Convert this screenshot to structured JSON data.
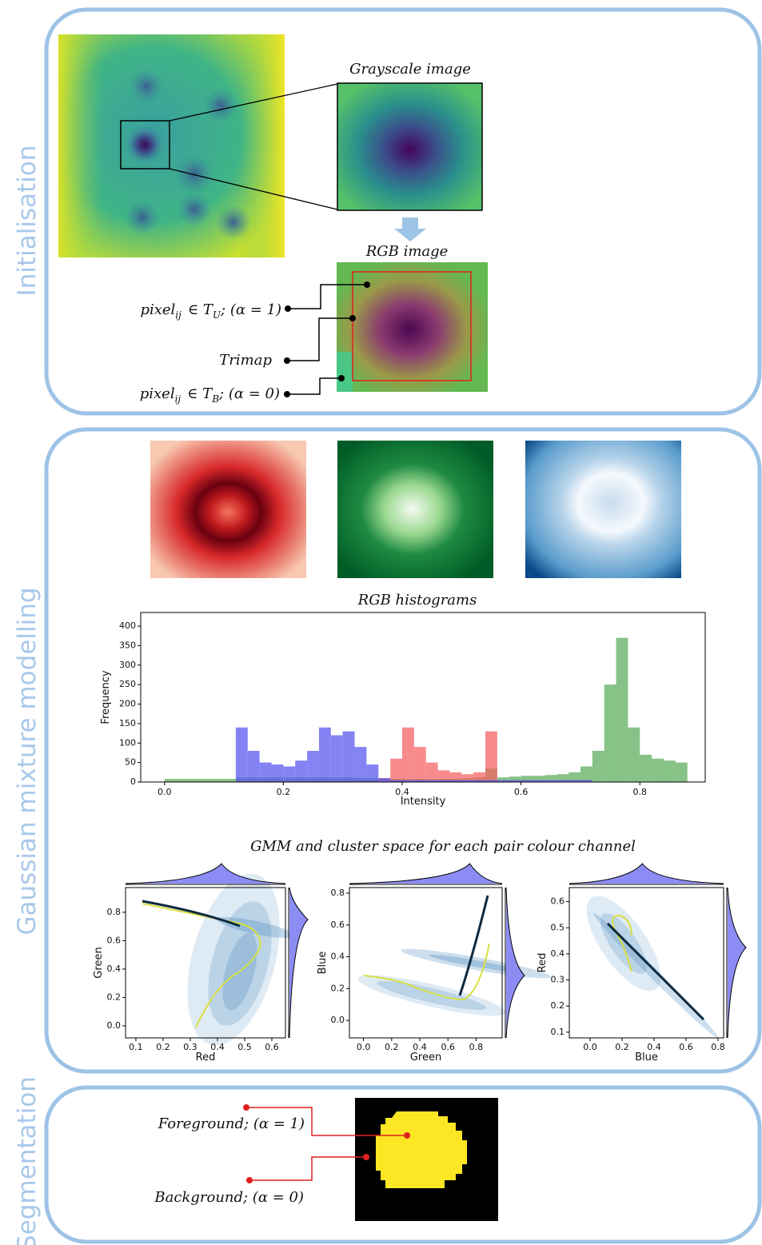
{
  "sections": [
    "Initialisation",
    "Gaussian mixture modelling",
    "Segmentation"
  ],
  "initialisation": {
    "zoom_title": "Grayscale image",
    "rgb_title": "RGB image",
    "pixel_unknown": [
      "pixel",
      "ij",
      "∈ T",
      "U",
      "; (α = 1)"
    ],
    "trimap": "Trimap",
    "pixel_background": [
      "pixel",
      "ij",
      "∈ T",
      "B",
      "; (α = 0)"
    ]
  },
  "channels_title": "RGB histograms",
  "chart_data": {
    "type": "histogram",
    "x_label": "Intensity",
    "y_label": "Frequency",
    "bins": [
      0,
      0.02,
      0.04,
      0.06,
      0.08,
      0.1,
      0.12,
      0.14,
      0.16,
      0.18,
      0.2,
      0.22,
      0.24,
      0.26,
      0.28,
      0.3,
      0.32,
      0.34,
      0.36,
      0.38,
      0.4,
      0.42,
      0.44,
      0.46,
      0.48,
      0.5,
      0.52,
      0.54,
      0.56,
      0.58,
      0.6,
      0.62,
      0.64,
      0.66,
      0.68,
      0.7,
      0.72,
      0.74,
      0.76,
      0.78,
      0.8,
      0.82,
      0.84,
      0.86,
      0.88
    ],
    "series": [
      {
        "name": "Green",
        "color": "#5fad5f",
        "values": [
          8,
          8,
          8,
          8,
          8,
          8,
          12,
          12,
          12,
          12,
          12,
          12,
          12,
          12,
          12,
          12,
          10,
          10,
          8,
          8,
          8,
          8,
          8,
          8,
          8,
          10,
          12,
          35,
          12,
          14,
          16,
          16,
          18,
          20,
          25,
          40,
          80,
          250,
          370,
          140,
          70,
          60,
          55,
          50
        ]
      },
      {
        "name": "Red",
        "color": "#f46464",
        "values": [
          0,
          0,
          0,
          0,
          0,
          0,
          3,
          3,
          3,
          3,
          3,
          3,
          3,
          3,
          3,
          3,
          3,
          3,
          10,
          60,
          140,
          90,
          50,
          30,
          25,
          20,
          25,
          130,
          3,
          3,
          3,
          3,
          3,
          3,
          3,
          3,
          0,
          0,
          0,
          0,
          0,
          0,
          0,
          0
        ]
      },
      {
        "name": "Blue",
        "color": "#5a5af0",
        "values": [
          0,
          0,
          0,
          0,
          0,
          0,
          140,
          80,
          50,
          45,
          40,
          55,
          80,
          140,
          120,
          130,
          90,
          45,
          10,
          5,
          5,
          5,
          5,
          5,
          5,
          5,
          5,
          5,
          5,
          5,
          5,
          5,
          5,
          5,
          5,
          5,
          0,
          0,
          0,
          0,
          0,
          0,
          0,
          0
        ]
      }
    ],
    "xlim": [
      -0.04,
      0.91
    ],
    "ylim": [
      0,
      435
    ],
    "xticks": [
      {
        "value": 0,
        "label": "0.0"
      },
      0.2,
      0.4,
      0.6,
      0.8
    ],
    "yticks": [
      0,
      50,
      100,
      150,
      200,
      250,
      300,
      350,
      400
    ]
  },
  "gmm": {
    "title": "GMM and cluster space for each pair colour channel",
    "panels": [
      {
        "x_label": "Red",
        "y_label": "Green",
        "xlim": [
          0.062,
          0.65
        ],
        "ylim": [
          -0.085,
          0.974
        ],
        "xticks": [
          0.1,
          0.2,
          0.3,
          0.4,
          0.5,
          0.6
        ],
        "yticks": [
          {
            "value": 0,
            "label": "0.0"
          },
          0.2,
          0.4,
          0.6,
          0.8
        ]
      },
      {
        "x_label": "Green",
        "y_label": "Blue",
        "xlim": [
          -0.1,
          0.985
        ],
        "ylim": [
          -0.11,
          0.835
        ],
        "xticks": [
          {
            "value": 0,
            "label": "0.0"
          },
          0.2,
          0.4,
          0.6,
          0.8
        ],
        "yticks": [
          {
            "value": 0,
            "label": "0.0"
          },
          0.2,
          0.4,
          0.6,
          0.8
        ]
      },
      {
        "x_label": "Blue",
        "y_label": "Red",
        "xlim": [
          -0.13,
          0.835
        ],
        "ylim": [
          0.078,
          0.654
        ],
        "xticks": [
          {
            "value": 0,
            "label": "0.0"
          },
          0.2,
          0.4,
          0.6,
          0.8
        ],
        "yticks": [
          0.1,
          0.2,
          0.3,
          0.4,
          0.5,
          0.6
        ]
      }
    ]
  },
  "segmentation": {
    "foreground": "Foreground; (α = 1)",
    "background": "Background; (α = 0)"
  }
}
